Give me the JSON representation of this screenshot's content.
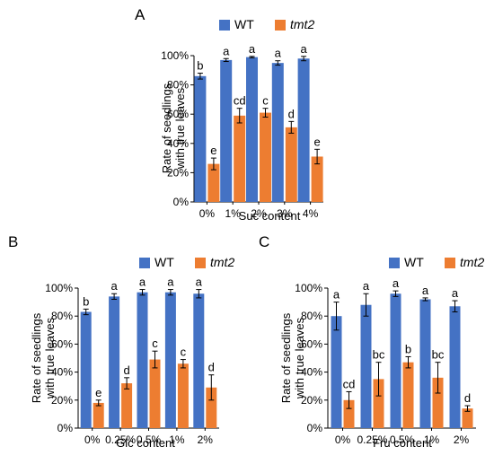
{
  "colors": {
    "wt": "#4472C4",
    "tmt2": "#ED7D31",
    "axis": "#000000"
  },
  "chart_data": [
    {
      "panel": "A",
      "type": "bar",
      "categories": [
        "0%",
        "1%",
        "2%",
        "3%",
        "4%"
      ],
      "xlabel": "Suc  content",
      "ylabel": [
        "Rate of seedlings",
        "with true leaves"
      ],
      "ylim": [
        0,
        100
      ],
      "yticks": [
        "0%",
        "20%",
        "40%",
        "60%",
        "80%",
        "100%"
      ],
      "legend": "top-right",
      "series": [
        {
          "name": "WT",
          "key": "wt",
          "values": [
            86,
            97,
            99,
            95,
            98
          ],
          "errors": [
            2,
            1,
            0.5,
            1.5,
            1.5
          ],
          "labels": [
            "b",
            "a",
            "a",
            "a",
            "a"
          ]
        },
        {
          "name": "tmt2",
          "key": "tmt2",
          "values": [
            26,
            59,
            61,
            51,
            31
          ],
          "errors": [
            4,
            5,
            3,
            4,
            5
          ],
          "labels": [
            "e",
            "cd",
            "c",
            "d",
            "e"
          ]
        }
      ]
    },
    {
      "panel": "B",
      "type": "bar",
      "categories": [
        "0%",
        "0.25%",
        "0.5%",
        "1%",
        "2%"
      ],
      "xlabel": "Glc  content",
      "ylabel": [
        "Rate of seedlings",
        "with true leaves"
      ],
      "ylim": [
        0,
        100
      ],
      "yticks": [
        "0%",
        "20%",
        "40%",
        "60%",
        "80%",
        "100%"
      ],
      "legend": "top-right",
      "series": [
        {
          "name": "WT",
          "key": "wt",
          "values": [
            83,
            94,
            97,
            97,
            96
          ],
          "errors": [
            2,
            2,
            2,
            2,
            3
          ],
          "labels": [
            "b",
            "a",
            "a",
            "a",
            "a"
          ]
        },
        {
          "name": "tmt2",
          "key": "tmt2",
          "values": [
            18,
            32,
            49,
            46,
            29
          ],
          "errors": [
            2,
            4,
            6,
            3,
            9
          ],
          "labels": [
            "e",
            "d",
            "c",
            "c",
            "d"
          ]
        }
      ]
    },
    {
      "panel": "C",
      "type": "bar",
      "categories": [
        "0%",
        "0.25%",
        "0.5%",
        "1%",
        "2%"
      ],
      "xlabel": "Fru  content",
      "ylabel": [
        "Rate of seedlings",
        "with true leaves"
      ],
      "ylim": [
        0,
        100
      ],
      "yticks": [
        "0%",
        "20%",
        "40%",
        "60%",
        "80%",
        "100%"
      ],
      "legend": "top-right",
      "series": [
        {
          "name": "WT",
          "key": "wt",
          "values": [
            80,
            88,
            96,
            92,
            87
          ],
          "errors": [
            10,
            8,
            2,
            1,
            4
          ],
          "labels": [
            "a",
            "a",
            "a",
            "a",
            "a"
          ]
        },
        {
          "name": "tmt2",
          "key": "tmt2",
          "values": [
            20,
            35,
            47,
            36,
            14
          ],
          "errors": [
            6,
            12,
            4,
            11,
            2
          ],
          "labels": [
            "cd",
            "bc",
            "b",
            "bc",
            "d"
          ]
        }
      ]
    }
  ]
}
